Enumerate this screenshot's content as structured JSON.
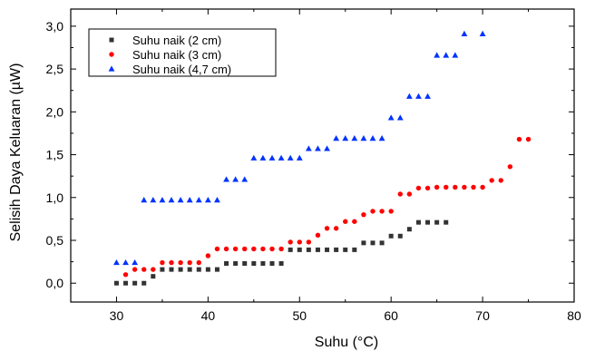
{
  "chart_data": {
    "type": "scatter",
    "title": "",
    "xlabel": "Suhu (°C)",
    "ylabel": "Selisih Daya Keluaran (µW)",
    "xlim": [
      25,
      80
    ],
    "ylim": [
      -0.22,
      3.2
    ],
    "xticks": [
      30,
      40,
      50,
      60,
      70,
      80
    ],
    "xtick_labels": [
      "30",
      "40",
      "50",
      "60",
      "70",
      "80"
    ],
    "yticks": [
      0,
      0.5,
      1,
      1.5,
      2,
      2.5,
      3
    ],
    "ytick_labels": [
      "0,0",
      "0,5",
      "1,0",
      "1,5",
      "2,0",
      "2,5",
      "3,0"
    ],
    "grid": false,
    "legend_position": "top-left",
    "series": [
      {
        "name": "Suhu naik (2 cm)",
        "color": "#333333",
        "marker": "square",
        "x": [
          30,
          31,
          32,
          33,
          34,
          35,
          36,
          37,
          38,
          39,
          40,
          41,
          42,
          43,
          44,
          45,
          46,
          47,
          48,
          49,
          50,
          51,
          52,
          53,
          54,
          55,
          56,
          57,
          58,
          59,
          60,
          61,
          62,
          63,
          64,
          65,
          66
        ],
        "y": [
          0,
          0,
          0,
          0,
          0.08,
          0.16,
          0.16,
          0.16,
          0.16,
          0.16,
          0.16,
          0.16,
          0.23,
          0.23,
          0.23,
          0.23,
          0.23,
          0.23,
          0.23,
          0.39,
          0.39,
          0.39,
          0.39,
          0.39,
          0.39,
          0.39,
          0.39,
          0.47,
          0.47,
          0.47,
          0.55,
          0.55,
          0.63,
          0.71,
          0.71,
          0.71,
          0.71
        ]
      },
      {
        "name": "Suhu naik (3 cm)",
        "color": "#ff0000",
        "marker": "circle",
        "x": [
          31,
          32,
          33,
          34,
          35,
          36,
          37,
          38,
          39,
          40,
          41,
          42,
          43,
          44,
          45,
          46,
          47,
          48,
          49,
          50,
          51,
          52,
          53,
          54,
          55,
          56,
          57,
          58,
          59,
          60,
          61,
          62,
          63,
          64,
          65,
          66,
          67,
          68,
          69,
          70,
          71,
          72,
          73,
          74,
          75
        ],
        "y": [
          0.1,
          0.16,
          0.16,
          0.16,
          0.24,
          0.24,
          0.24,
          0.24,
          0.24,
          0.32,
          0.4,
          0.4,
          0.4,
          0.4,
          0.4,
          0.4,
          0.4,
          0.4,
          0.48,
          0.48,
          0.48,
          0.56,
          0.64,
          0.64,
          0.72,
          0.72,
          0.8,
          0.84,
          0.84,
          0.84,
          1.04,
          1.04,
          1.11,
          1.11,
          1.12,
          1.12,
          1.12,
          1.12,
          1.12,
          1.12,
          1.2,
          1.2,
          1.36,
          1.68,
          1.68
        ]
      },
      {
        "name": "Suhu naik (4,7 cm)",
        "color": "#0033ff",
        "marker": "triangle",
        "x": [
          30,
          31,
          32,
          33,
          34,
          35,
          36,
          37,
          38,
          39,
          40,
          41,
          42,
          43,
          44,
          45,
          46,
          47,
          48,
          49,
          50,
          51,
          52,
          53,
          54,
          55,
          56,
          57,
          58,
          59,
          60,
          61,
          62,
          63,
          64,
          65,
          66,
          67,
          68,
          70
        ],
        "y": [
          0.24,
          0.24,
          0.24,
          0.97,
          0.97,
          0.97,
          0.97,
          0.97,
          0.97,
          0.97,
          0.97,
          0.97,
          1.21,
          1.21,
          1.21,
          1.46,
          1.46,
          1.46,
          1.46,
          1.46,
          1.46,
          1.57,
          1.57,
          1.57,
          1.69,
          1.69,
          1.69,
          1.69,
          1.69,
          1.69,
          1.93,
          1.93,
          2.18,
          2.18,
          2.18,
          2.66,
          2.66,
          2.66,
          2.91,
          2.91
        ]
      }
    ]
  }
}
